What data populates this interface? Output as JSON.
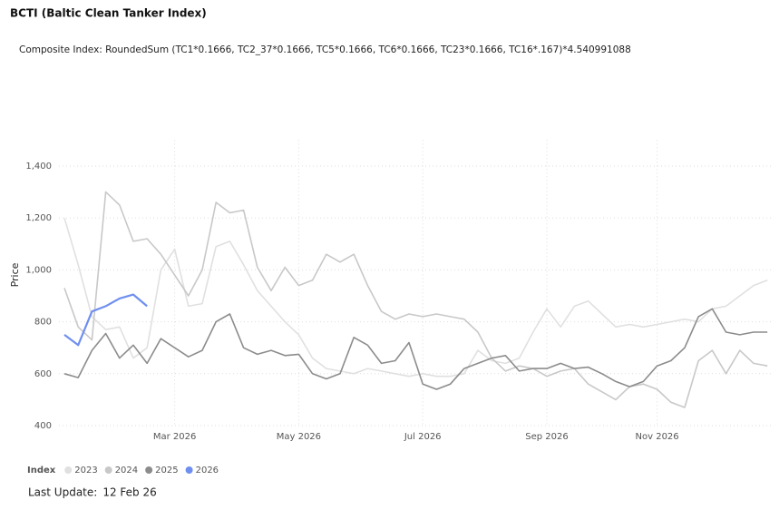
{
  "chart_data": {
    "type": "line",
    "title": "BCTI (Baltic Clean Tanker Index)",
    "subtitle": "Composite Index: RoundedSum (TC1*0.1666, TC2_37*0.1666, TC5*0.1666, TC6*0.1666, TC23*0.1666, TC16*.167)*4.540991088",
    "y_label": "Price",
    "legend_title": "Index",
    "last_update": {
      "label": "Last Update:",
      "value": "12 Feb 26"
    },
    "categories": [
      null,
      null,
      null,
      null,
      null,
      null,
      null,
      null,
      "Mar 2026",
      null,
      null,
      null,
      null,
      null,
      null,
      null,
      null,
      "May 2026",
      null,
      null,
      null,
      null,
      null,
      null,
      null,
      null,
      "Jul 2026",
      null,
      null,
      null,
      null,
      null,
      null,
      null,
      null,
      "Sep 2026",
      null,
      null,
      null,
      null,
      null,
      null,
      null,
      "Nov 2026",
      null,
      null,
      null,
      null,
      null,
      null,
      null,
      null
    ],
    "ylim": [
      400,
      1500
    ],
    "yticks": [
      400,
      600,
      800,
      {
        "value": 1000,
        "label": "1,000"
      },
      {
        "value": 1200,
        "label": "1,200"
      },
      {
        "value": 1400,
        "label": "1,400"
      }
    ],
    "grid": true,
    "series": [
      {
        "name": "2023",
        "color": "#e0e0e0",
        "values": [
          1200,
          1020,
          820,
          770,
          780,
          660,
          700,
          1000,
          1080,
          860,
          870,
          1090,
          1110,
          1020,
          920,
          860,
          800,
          750,
          660,
          620,
          610,
          600,
          620,
          610,
          600,
          590,
          600,
          590,
          590,
          600,
          690,
          650,
          640,
          660,
          760,
          850,
          780,
          860,
          880,
          830,
          780,
          790,
          780,
          790,
          800,
          810,
          800,
          850,
          860,
          900,
          940,
          960
        ]
      },
      {
        "name": "2024",
        "color": "#c8c8c8",
        "values": [
          930,
          780,
          730,
          1300,
          1250,
          1110,
          1120,
          1060,
          980,
          900,
          1000,
          1260,
          1220,
          1230,
          1010,
          920,
          1010,
          940,
          960,
          1060,
          1030,
          1060,
          940,
          840,
          810,
          830,
          820,
          830,
          820,
          810,
          760,
          660,
          610,
          630,
          620,
          590,
          610,
          620,
          560,
          530,
          500,
          550,
          560,
          540,
          490,
          470,
          650,
          690,
          600,
          690,
          640,
          630
        ]
      },
      {
        "name": "2025",
        "color": "#8c8c8c",
        "values": [
          600,
          585,
          690,
          755,
          660,
          710,
          640,
          735,
          700,
          665,
          690,
          800,
          830,
          700,
          675,
          690,
          670,
          675,
          600,
          580,
          600,
          740,
          710,
          640,
          650,
          720,
          560,
          540,
          560,
          620,
          640,
          660,
          670,
          610,
          620,
          620,
          640,
          620,
          625,
          600,
          570,
          550,
          570,
          630,
          650,
          700,
          820,
          850,
          760,
          750,
          760,
          760
        ]
      },
      {
        "name": "2026",
        "color": "#6f8ff0",
        "values": [
          750,
          710,
          840,
          860,
          890,
          905,
          860,
          null,
          null,
          null,
          null,
          null,
          null,
          null,
          null,
          null,
          null,
          null,
          null,
          null,
          null,
          null,
          null,
          null,
          null,
          null,
          null,
          null,
          null,
          null,
          null,
          null,
          null,
          null,
          null,
          null,
          null,
          null,
          null,
          null,
          null,
          null,
          null,
          null,
          null,
          null,
          null,
          null,
          null,
          null,
          null,
          null
        ]
      }
    ]
  }
}
